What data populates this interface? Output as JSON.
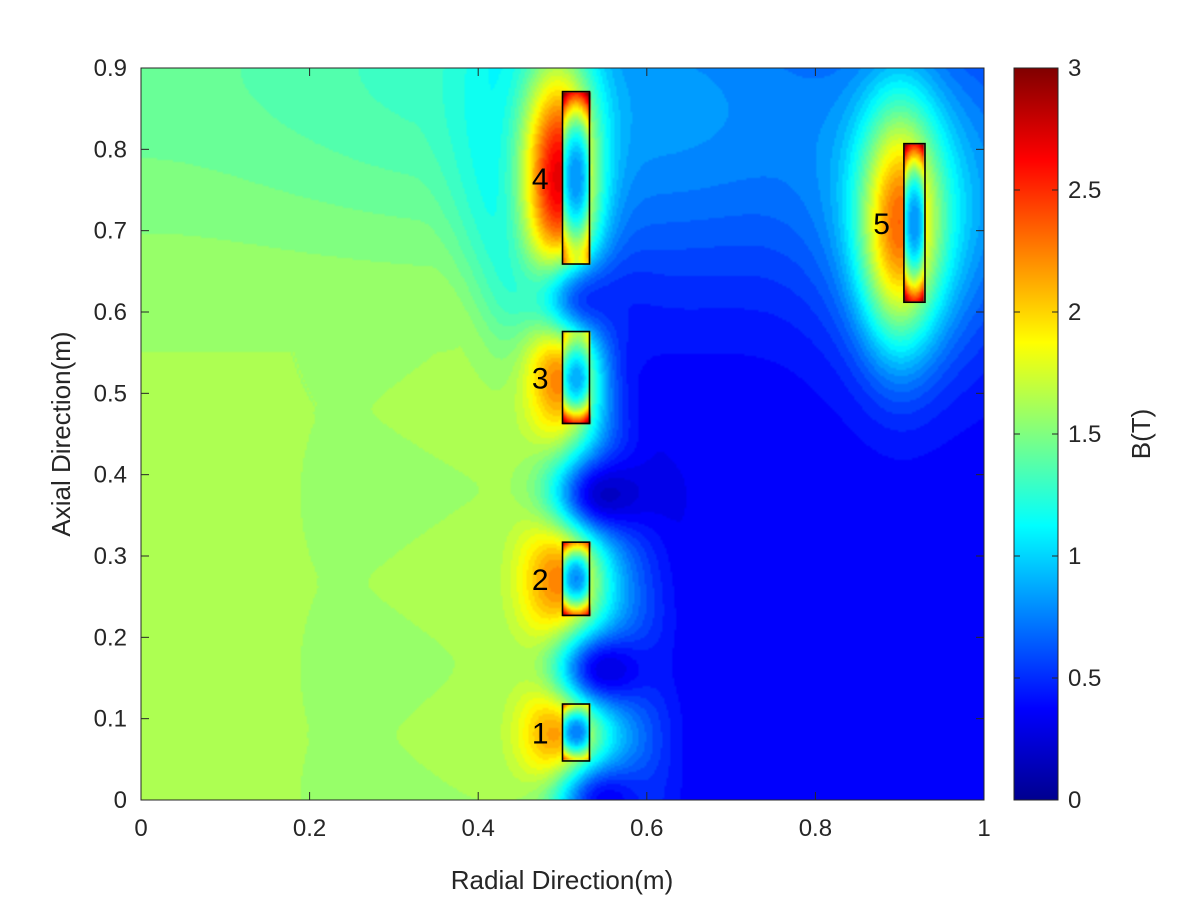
{
  "chart_data": {
    "type": "heatmap",
    "title": "",
    "xlabel": "Radial Direction(m)",
    "ylabel": "Axial Direction(m)",
    "xlim": [
      0,
      1
    ],
    "ylim": [
      0,
      0.9
    ],
    "x_ticks": [
      0,
      0.2,
      0.4,
      0.6,
      0.8,
      1
    ],
    "x_tick_labels": [
      "0",
      "0.2",
      "0.4",
      "0.6",
      "0.8",
      "1"
    ],
    "y_ticks": [
      0,
      0.1,
      0.2,
      0.3,
      0.4,
      0.5,
      0.6,
      0.7,
      0.8,
      0.9
    ],
    "y_tick_labels": [
      "0",
      "0.1",
      "0.2",
      "0.3",
      "0.4",
      "0.5",
      "0.6",
      "0.7",
      "0.8",
      "0.9"
    ],
    "grid": false,
    "colormap": "jet",
    "colorbar": {
      "label": "B(T)",
      "range": [
        0,
        3
      ],
      "ticks": [
        0,
        0.5,
        1,
        1.5,
        2,
        2.5,
        3
      ],
      "tick_labels": [
        "0",
        "0.5",
        "1",
        "1.5",
        "2",
        "2.5",
        "3"
      ]
    },
    "field_description": {
      "interior_level": 1.6,
      "outer_level": 0.35,
      "top_region_level": 1.2,
      "minima": [
        {
          "r": 0.53,
          "z": 0.615,
          "B": 0.4
        },
        {
          "r": 0.55,
          "z": 0.375,
          "B": 0.05
        },
        {
          "r": 0.55,
          "z": 0.16,
          "B": 0.1
        },
        {
          "r": 0.55,
          "z": 0.0,
          "B": 0.2
        }
      ]
    },
    "coils": [
      {
        "label": "1",
        "r_min": 0.5,
        "r_max": 0.532,
        "z_min": 0.048,
        "z_max": 0.118,
        "peak_B": 2.3
      },
      {
        "label": "2",
        "r_min": 0.5,
        "r_max": 0.532,
        "z_min": 0.227,
        "z_max": 0.317,
        "peak_B": 2.3
      },
      {
        "label": "3",
        "r_min": 0.5,
        "r_max": 0.532,
        "z_min": 0.463,
        "z_max": 0.576,
        "peak_B": 2.3
      },
      {
        "label": "4",
        "r_min": 0.5,
        "r_max": 0.532,
        "z_min": 0.659,
        "z_max": 0.871,
        "peak_B": 2.8
      },
      {
        "label": "5",
        "r_min": 0.905,
        "r_max": 0.93,
        "z_min": 0.612,
        "z_max": 0.807,
        "peak_B": 2.4
      }
    ]
  }
}
